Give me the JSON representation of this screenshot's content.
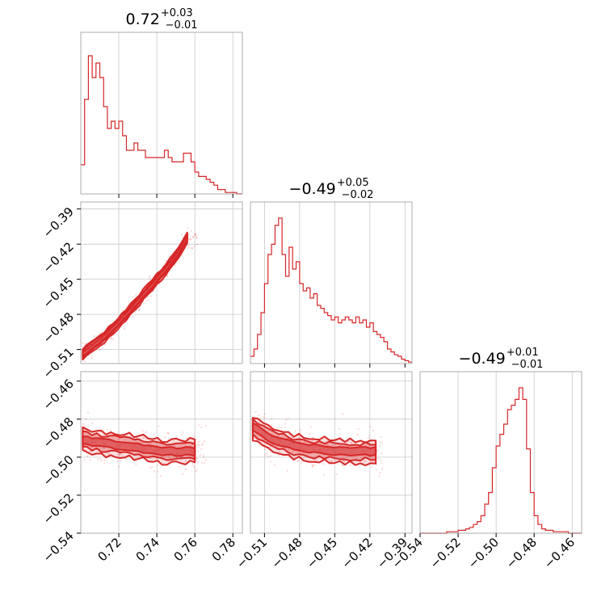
{
  "chart_data": [
    {
      "type": "histogram",
      "panel": "diag-1",
      "title_main": "0.72",
      "title_sup": "+0.03",
      "title_sub": "−0.01",
      "xlim": [
        0.7,
        0.785
      ],
      "xticks": [
        0.72,
        0.74,
        0.76,
        0.78
      ],
      "bins": [
        0.7,
        0.702,
        0.704,
        0.706,
        0.708,
        0.71,
        0.712,
        0.714,
        0.716,
        0.718,
        0.72,
        0.722,
        0.724,
        0.726,
        0.728,
        0.73,
        0.732,
        0.734,
        0.736,
        0.738,
        0.74,
        0.742,
        0.744,
        0.746,
        0.748,
        0.75,
        0.752,
        0.754,
        0.756,
        0.758,
        0.76,
        0.762,
        0.764,
        0.766,
        0.768,
        0.77,
        0.772,
        0.774,
        0.776,
        0.778,
        0.78,
        0.782,
        0.785
      ],
      "counts": [
        0.2,
        0.65,
        0.95,
        0.8,
        0.9,
        0.8,
        0.6,
        0.45,
        0.5,
        0.45,
        0.5,
        0.4,
        0.3,
        0.3,
        0.35,
        0.3,
        0.3,
        0.25,
        0.25,
        0.25,
        0.25,
        0.25,
        0.3,
        0.25,
        0.22,
        0.22,
        0.22,
        0.28,
        0.28,
        0.22,
        0.15,
        0.12,
        0.12,
        0.1,
        0.08,
        0.06,
        0.03,
        0.03,
        0.01,
        0.01,
        0.01,
        0.0
      ],
      "color": "#d62728"
    },
    {
      "type": "histogram",
      "panel": "diag-2",
      "title_main": "−0.49",
      "title_sup": "+0.05",
      "title_sub": "−0.02",
      "xlim": [
        -0.522,
        -0.384
      ],
      "xticks": [
        -0.51,
        -0.48,
        -0.45,
        -0.42,
        -0.39
      ],
      "tick_labels": [
        "−0.51",
        "−0.48",
        "−0.45",
        "−0.42",
        "−0.39"
      ],
      "bins": [
        -0.522,
        -0.519,
        -0.516,
        -0.513,
        -0.51,
        -0.507,
        -0.504,
        -0.501,
        -0.498,
        -0.495,
        -0.492,
        -0.489,
        -0.486,
        -0.483,
        -0.48,
        -0.477,
        -0.474,
        -0.471,
        -0.468,
        -0.465,
        -0.462,
        -0.459,
        -0.456,
        -0.453,
        -0.45,
        -0.447,
        -0.444,
        -0.441,
        -0.438,
        -0.435,
        -0.432,
        -0.429,
        -0.426,
        -0.423,
        -0.42,
        -0.417,
        -0.414,
        -0.411,
        -0.408,
        -0.405,
        -0.402,
        -0.399,
        -0.396,
        -0.393,
        -0.39,
        -0.387,
        -0.384
      ],
      "counts": [
        0.05,
        0.1,
        0.2,
        0.35,
        0.55,
        0.75,
        0.82,
        0.95,
        1.0,
        0.75,
        0.6,
        0.8,
        0.65,
        0.7,
        0.55,
        0.5,
        0.52,
        0.45,
        0.48,
        0.4,
        0.38,
        0.35,
        0.33,
        0.3,
        0.32,
        0.28,
        0.3,
        0.32,
        0.3,
        0.28,
        0.32,
        0.28,
        0.3,
        0.25,
        0.28,
        0.22,
        0.2,
        0.18,
        0.15,
        0.1,
        0.08,
        0.06,
        0.05,
        0.03,
        0.02,
        0.01
      ],
      "color": "#d62728"
    },
    {
      "type": "histogram",
      "panel": "diag-3",
      "title_main": "−0.49",
      "title_sup": "+0.01",
      "title_sub": "−0.01",
      "xlim": [
        -0.54,
        -0.455
      ],
      "xticks": [
        -0.54,
        -0.52,
        -0.5,
        -0.48,
        -0.46
      ],
      "tick_labels": [
        "−0.54",
        "−0.52",
        "−0.50",
        "−0.48",
        "−0.46"
      ],
      "bins": [
        -0.54,
        -0.538,
        -0.536,
        -0.534,
        -0.532,
        -0.53,
        -0.528,
        -0.526,
        -0.524,
        -0.522,
        -0.52,
        -0.518,
        -0.516,
        -0.514,
        -0.512,
        -0.51,
        -0.508,
        -0.506,
        -0.504,
        -0.502,
        -0.5,
        -0.498,
        -0.496,
        -0.494,
        -0.492,
        -0.49,
        -0.488,
        -0.486,
        -0.484,
        -0.482,
        -0.48,
        -0.478,
        -0.476,
        -0.474,
        -0.472,
        -0.47,
        -0.468,
        -0.466,
        -0.464,
        -0.462,
        -0.46,
        -0.458,
        -0.455
      ],
      "counts": [
        0.0,
        0.0,
        0.0,
        0.0,
        0.0,
        0.0,
        0.0,
        0.01,
        0.01,
        0.01,
        0.02,
        0.02,
        0.03,
        0.04,
        0.06,
        0.08,
        0.12,
        0.2,
        0.28,
        0.45,
        0.6,
        0.68,
        0.75,
        0.85,
        0.88,
        0.92,
        1.0,
        0.92,
        0.58,
        0.28,
        0.12,
        0.06,
        0.03,
        0.02,
        0.02,
        0.01,
        0.01,
        0.01,
        0.01,
        0.0,
        0.0,
        0.0
      ],
      "color": "#d62728"
    },
    {
      "type": "contour",
      "panel": "p21",
      "xlim": [
        0.7,
        0.785
      ],
      "ylim": [
        -0.522,
        -0.384
      ],
      "yticks": [
        -0.51,
        -0.48,
        -0.45,
        -0.42,
        -0.39
      ],
      "ytick_labels": [
        "−0.51",
        "−0.48",
        "−0.45",
        "−0.42",
        "−0.39"
      ],
      "ridge_x": [
        0.701,
        0.712,
        0.724,
        0.736,
        0.748,
        0.756
      ],
      "ridge_y": [
        -0.514,
        -0.5,
        -0.48,
        -0.458,
        -0.435,
        -0.415
      ],
      "color": "#d62728"
    },
    {
      "type": "contour",
      "panel": "p31",
      "xlim": [
        0.7,
        0.785
      ],
      "ylim": [
        -0.54,
        -0.455
      ],
      "yticks": [
        -0.46,
        -0.48,
        -0.5,
        -0.52,
        -0.54
      ],
      "ytick_labels": [
        "−0.46",
        "−0.48",
        "−0.50",
        "−0.52",
        "−0.54"
      ],
      "xtick_labels": [
        "0.72",
        "0.74",
        "0.76",
        "0.78"
      ],
      "ridge_x": [
        0.701,
        0.715,
        0.73,
        0.745,
        0.76
      ],
      "ridge_y": [
        -0.491,
        -0.493,
        -0.495,
        -0.497,
        -0.497
      ],
      "color": "#d62728"
    },
    {
      "type": "contour",
      "panel": "p32",
      "xlim": [
        -0.522,
        -0.384
      ],
      "ylim": [
        -0.54,
        -0.455
      ],
      "xtick_labels": [
        "−0.51",
        "−0.48",
        "−0.45",
        "−0.42",
        "−0.39"
      ],
      "ridge_x": [
        -0.52,
        -0.505,
        -0.485,
        -0.465,
        -0.44,
        -0.415
      ],
      "ridge_y": [
        -0.484,
        -0.49,
        -0.494,
        -0.496,
        -0.497,
        -0.497
      ],
      "color": "#d62728"
    }
  ]
}
